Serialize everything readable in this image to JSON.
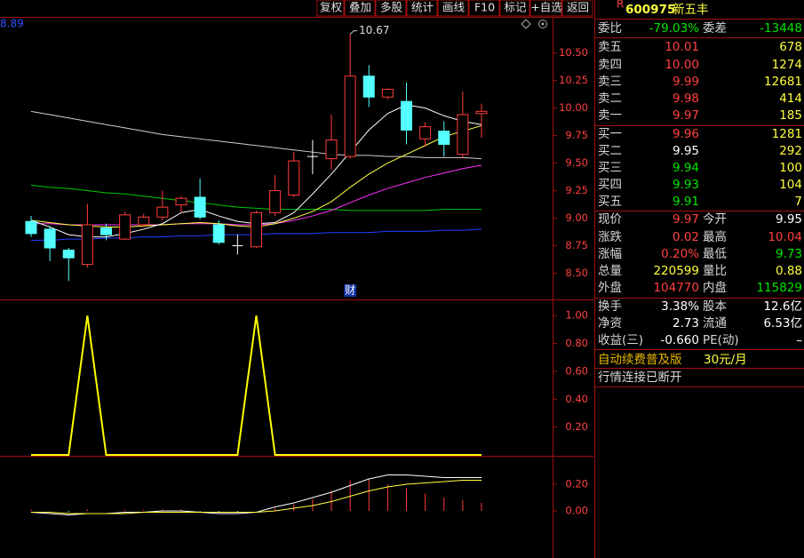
{
  "toolbar": [
    "复权",
    "叠加",
    "多股",
    "统计",
    "画线",
    "F10",
    "标记",
    "+自选",
    "返回"
  ],
  "chart_data": [
    {
      "type": "candlestick",
      "corner_label": "8.89",
      "max_label": "10.67",
      "marker": "财",
      "open": [
        8.97,
        8.9,
        8.71,
        8.58,
        8.91,
        8.81,
        8.94,
        9.01,
        9.12,
        9.19,
        8.94,
        8.75,
        8.74,
        9.05,
        9.21,
        9.56,
        9.54,
        9.56,
        10.29,
        10.1,
        10.06,
        9.72,
        9.79,
        9.58,
        9.95
      ],
      "high": [
        9.02,
        8.93,
        8.73,
        9.13,
        8.95,
        9.06,
        9.04,
        9.25,
        9.2,
        9.36,
        8.98,
        8.85,
        9.07,
        9.39,
        9.6,
        9.71,
        9.94,
        10.67,
        10.39,
        10.18,
        10.23,
        9.87,
        9.88,
        10.15,
        10.04
      ],
      "low": [
        8.83,
        8.61,
        8.43,
        8.55,
        8.8,
        8.8,
        8.92,
        8.98,
        9.05,
        8.99,
        8.76,
        8.67,
        8.73,
        9.02,
        9.19,
        9.4,
        9.44,
        9.54,
        10.01,
        10.08,
        9.67,
        9.65,
        9.56,
        9.55,
        9.73
      ],
      "close": [
        8.86,
        8.73,
        8.64,
        8.94,
        8.85,
        9.03,
        9.01,
        9.1,
        9.18,
        9.01,
        8.78,
        8.75,
        9.05,
        9.25,
        9.52,
        9.56,
        9.71,
        10.29,
        10.1,
        10.17,
        9.8,
        9.83,
        9.67,
        9.94,
        9.97
      ],
      "up_color": "#ff3c3c",
      "down_color": "#54ffff",
      "doji_color": "#ffffff",
      "series": [
        {
          "color": "#d0d0d0",
          "values": [
            9.97,
            9.94,
            9.91,
            9.88,
            9.85,
            9.82,
            9.79,
            9.76,
            9.74,
            9.72,
            9.7,
            9.68,
            9.66,
            9.64,
            9.62,
            9.6,
            9.58,
            9.57,
            9.57,
            9.56,
            9.56,
            9.55,
            9.55,
            9.55,
            9.54
          ]
        },
        {
          "color": "#00c800",
          "values": [
            9.3,
            9.28,
            9.27,
            9.25,
            9.23,
            9.22,
            9.2,
            9.18,
            9.16,
            9.14,
            9.12,
            9.1,
            9.09,
            9.08,
            9.08,
            9.08,
            9.08,
            9.07,
            9.07,
            9.07,
            9.07,
            9.07,
            9.08,
            9.08,
            9.08
          ]
        },
        {
          "color": "#2040ff",
          "values": [
            8.8,
            8.8,
            8.81,
            8.81,
            8.82,
            8.82,
            8.83,
            8.83,
            8.84,
            8.84,
            8.85,
            8.85,
            8.85,
            8.86,
            8.86,
            8.86,
            8.87,
            8.87,
            8.87,
            8.88,
            8.88,
            8.88,
            8.89,
            8.89,
            8.9
          ]
        },
        {
          "color": "#ff30ff",
          "values": [
            8.95,
            8.95,
            8.94,
            8.94,
            8.94,
            8.94,
            8.94,
            8.94,
            8.95,
            8.95,
            8.95,
            8.94,
            8.94,
            8.95,
            8.98,
            9.02,
            9.07,
            9.14,
            9.21,
            9.27,
            9.32,
            9.37,
            9.41,
            9.45,
            9.48
          ]
        },
        {
          "color": "#ffff40",
          "values": [
            8.98,
            8.96,
            8.94,
            8.93,
            8.92,
            8.92,
            8.93,
            8.94,
            8.95,
            8.96,
            8.95,
            8.93,
            8.92,
            8.95,
            9.0,
            9.06,
            9.15,
            9.28,
            9.4,
            9.5,
            9.58,
            9.66,
            9.74,
            9.79,
            9.84
          ]
        },
        {
          "color": "#ffffff",
          "values": [
            8.98,
            8.92,
            8.85,
            8.83,
            8.83,
            8.86,
            8.9,
            8.95,
            9.05,
            9.08,
            9.02,
            8.97,
            8.95,
            8.96,
            9.05,
            9.22,
            9.4,
            9.6,
            9.8,
            9.95,
            10.03,
            10.0,
            9.93,
            9.88,
            9.85
          ]
        }
      ],
      "ylim": [
        8.27,
        10.82
      ],
      "yticks": [
        {
          "value": 8.5,
          "label": "8.50"
        },
        8.75,
        {
          "value": 9,
          "label": "9.00"
        },
        9.25,
        {
          "value": 9.5,
          "label": "9.50"
        },
        9.75,
        {
          "value": 10,
          "label": "10.00"
        },
        10.25,
        {
          "value": 10.5,
          "label": "10.50"
        }
      ],
      "grid": false
    },
    {
      "type": "line",
      "series": [
        {
          "color": "#ffff00",
          "values": [
            0,
            0,
            0,
            1,
            0,
            0,
            0,
            0,
            0,
            0,
            0,
            0,
            1,
            0,
            0,
            0,
            0,
            0,
            0,
            0,
            0,
            0,
            0,
            0,
            0
          ]
        }
      ],
      "ylim": [
        0,
        1.11
      ],
      "yticks": [
        {
          "value": 0.2,
          "label": "0.20"
        },
        {
          "value": 0.4,
          "label": "0.40"
        },
        {
          "value": 0.6,
          "label": "0.60"
        },
        {
          "value": 0.8,
          "label": "0.80"
        },
        {
          "value": 1,
          "label": "1.00"
        }
      ],
      "grid": false
    },
    {
      "type": "macd",
      "up_color": "#ff3c3c",
      "down_color": "#54ffff",
      "values": [
        0.01,
        0.0,
        -0.01,
        0.01,
        0.0,
        0.01,
        0.01,
        0.01,
        0.01,
        -0.01,
        -0.01,
        -0.01,
        0.0,
        0.02,
        0.05,
        0.09,
        0.15,
        0.23,
        0.24,
        0.2,
        0.17,
        0.13,
        0.1,
        0.08,
        0.06
      ],
      "series": [
        {
          "color": "#ffffff",
          "values": [
            -0.01,
            -0.02,
            -0.03,
            -0.02,
            -0.02,
            -0.01,
            -0.01,
            0.0,
            0.0,
            -0.01,
            -0.02,
            -0.02,
            -0.01,
            0.03,
            0.06,
            0.1,
            0.14,
            0.19,
            0.24,
            0.27,
            0.27,
            0.26,
            0.25,
            0.25,
            0.25
          ]
        },
        {
          "color": "#ffff40",
          "values": [
            -0.01,
            -0.01,
            -0.02,
            -0.02,
            -0.02,
            -0.02,
            -0.01,
            -0.01,
            -0.01,
            -0.01,
            -0.01,
            -0.01,
            -0.01,
            0.0,
            0.02,
            0.04,
            0.07,
            0.11,
            0.15,
            0.18,
            0.2,
            0.21,
            0.22,
            0.23,
            0.23
          ]
        }
      ],
      "ylim": [
        -0.353,
        0.4
      ],
      "yticks": [
        {
          "value": 0,
          "label": "0.00"
        },
        {
          "value": 0.2,
          "label": "0.20"
        }
      ],
      "grid": false
    }
  ],
  "quote": {
    "badge": "R",
    "code": "600975",
    "name": "新五丰",
    "rows": [
      {
        "cells": [
          "委比",
          "-79.03%",
          "委差",
          "-13448"
        ],
        "colors": [
          "#d8d8d8",
          "#00e600",
          "#d8d8d8",
          "#00e600"
        ]
      },
      {
        "cells": [
          "卖五",
          "10.01",
          "678"
        ],
        "colors": [
          "#d8d8d8",
          "#ff4040",
          "#ffff40"
        ]
      },
      {
        "cells": [
          "卖四",
          "10.00",
          "1274"
        ],
        "colors": [
          "#d8d8d8",
          "#ff4040",
          "#ffff40"
        ]
      },
      {
        "cells": [
          "卖三",
          "9.99",
          "12681"
        ],
        "colors": [
          "#d8d8d8",
          "#ff4040",
          "#ffff40"
        ]
      },
      {
        "cells": [
          "卖二",
          "9.98",
          "414"
        ],
        "colors": [
          "#d8d8d8",
          "#ff4040",
          "#ffff40"
        ]
      },
      {
        "cells": [
          "卖一",
          "9.97",
          "185"
        ],
        "colors": [
          "#d8d8d8",
          "#ff4040",
          "#ffff40"
        ]
      },
      {
        "cells": [
          "买一",
          "9.96",
          "1281"
        ],
        "colors": [
          "#d8d8d8",
          "#ff4040",
          "#ffff40"
        ]
      },
      {
        "cells": [
          "买二",
          "9.95",
          "292"
        ],
        "colors": [
          "#d8d8d8",
          "#ffffff",
          "#ffff40"
        ]
      },
      {
        "cells": [
          "买三",
          "9.94",
          "100"
        ],
        "colors": [
          "#d8d8d8",
          "#00e600",
          "#ffff40"
        ]
      },
      {
        "cells": [
          "买四",
          "9.93",
          "104"
        ],
        "colors": [
          "#d8d8d8",
          "#00e600",
          "#ffff40"
        ]
      },
      {
        "cells": [
          "买五",
          "9.91",
          "7"
        ],
        "colors": [
          "#d8d8d8",
          "#00e600",
          "#ffff40"
        ]
      },
      {
        "cells": [
          "现价",
          "9.97",
          "今开",
          "9.95"
        ],
        "colors": [
          "#d8d8d8",
          "#ff4040",
          "#d8d8d8",
          "#ffffff"
        ]
      },
      {
        "cells": [
          "涨跌",
          "0.02",
          "最高",
          "10.04"
        ],
        "colors": [
          "#d8d8d8",
          "#ff4040",
          "#d8d8d8",
          "#ff4040"
        ]
      },
      {
        "cells": [
          "涨幅",
          "0.20%",
          "最低",
          "9.73"
        ],
        "colors": [
          "#d8d8d8",
          "#ff4040",
          "#d8d8d8",
          "#00e600"
        ]
      },
      {
        "cells": [
          "总量",
          "220599",
          "量比",
          "0.88"
        ],
        "colors": [
          "#d8d8d8",
          "#ffff40",
          "#d8d8d8",
          "#ffff40"
        ]
      },
      {
        "cells": [
          "外盘",
          "104770",
          "内盘",
          "115829"
        ],
        "colors": [
          "#d8d8d8",
          "#ff4040",
          "#d8d8d8",
          "#00e600"
        ]
      },
      {
        "cells": [
          "换手",
          "3.38%",
          "股本",
          "12.6亿"
        ],
        "colors": [
          "#d8d8d8",
          "#ffffff",
          "#d8d8d8",
          "#ffffff"
        ]
      },
      {
        "cells": [
          "净资",
          "2.73",
          "流通",
          "6.53亿"
        ],
        "colors": [
          "#d8d8d8",
          "#ffffff",
          "#d8d8d8",
          "#ffffff"
        ]
      },
      {
        "cells": [
          "收益(三)",
          "-0.660",
          "PE(动)",
          "–"
        ],
        "colors": [
          "#d8d8d8",
          "#ffffff",
          "#d8d8d8",
          "#ffffff"
        ]
      }
    ],
    "notice": "自动续费普及版",
    "price": "30元/月",
    "status": "行情连接已断开"
  }
}
